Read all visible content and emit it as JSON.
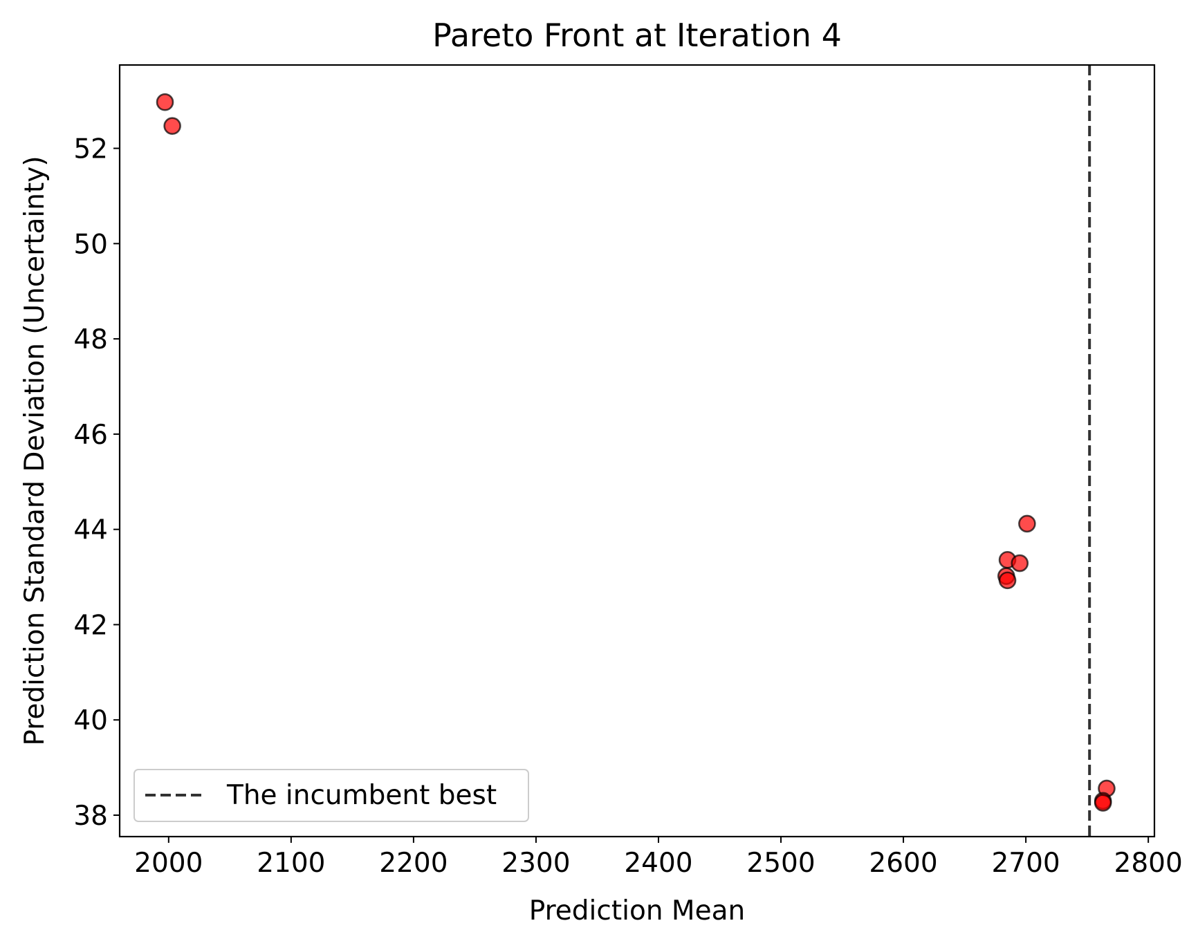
{
  "chart_data": {
    "type": "scatter",
    "title": "Pareto Front at Iteration 4",
    "xlabel": "Prediction Mean",
    "ylabel": "Prediction Standard Deviation (Uncertainty)",
    "xlim": [
      1960,
      2805
    ],
    "ylim": [
      37.55,
      53.75
    ],
    "x_ticks": [
      2000,
      2100,
      2200,
      2300,
      2400,
      2500,
      2600,
      2700,
      2800
    ],
    "y_ticks": [
      38,
      40,
      42,
      44,
      46,
      48,
      50,
      52
    ],
    "grid": false,
    "series": [
      {
        "points": [
          {
            "x": 1997,
            "y": 52.97
          },
          {
            "x": 2003,
            "y": 52.47
          },
          {
            "x": 2701,
            "y": 44.12
          },
          {
            "x": 2685,
            "y": 43.36
          },
          {
            "x": 2695,
            "y": 43.29
          },
          {
            "x": 2684,
            "y": 43.02
          },
          {
            "x": 2685,
            "y": 42.93
          },
          {
            "x": 2766,
            "y": 38.56
          },
          {
            "x": 2763,
            "y": 38.3
          },
          {
            "x": 2763,
            "y": 38.26
          }
        ],
        "color": "#ff0000",
        "edge_color": "#000000",
        "alpha": 0.7
      }
    ],
    "reference_lines": [
      {
        "orientation": "vertical",
        "x": 2752,
        "label": "The incumbent best",
        "color": "#333333",
        "style": "dashed"
      }
    ],
    "legend": {
      "placement": "lower-left",
      "entries": [
        "The incumbent best"
      ]
    }
  }
}
